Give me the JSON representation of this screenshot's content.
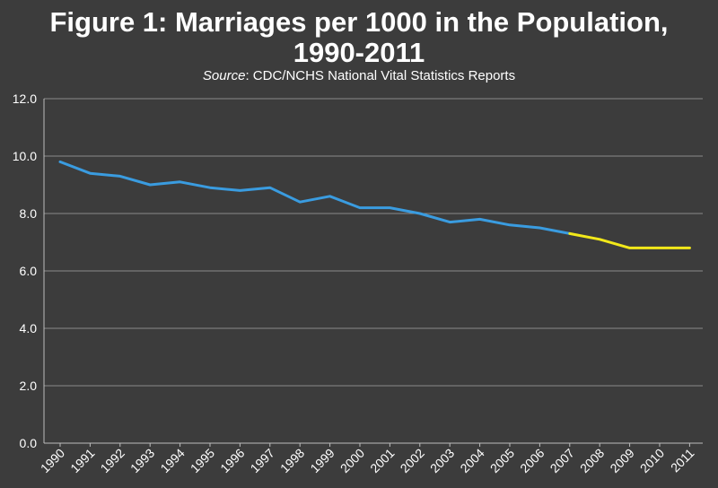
{
  "chart_data": {
    "type": "line",
    "title_line1": "Figure 1: Marriages per 1000 in the Population,",
    "title_line2": "1990-2011",
    "source_label": "Source",
    "source_text": ": CDC/NCHS National Vital Statistics Reports",
    "ylim": [
      0,
      12
    ],
    "y_ticks": [
      "0.0",
      "2.0",
      "4.0",
      "6.0",
      "8.0",
      "10.0",
      "12.0"
    ],
    "grid": true,
    "x": [
      "1990",
      "1991",
      "1992",
      "1993",
      "1994",
      "1995",
      "1996",
      "1997",
      "1998",
      "1999",
      "2000",
      "2001",
      "2002",
      "2003",
      "2004",
      "2005",
      "2006",
      "2007",
      "2008",
      "2009",
      "2010",
      "2011"
    ],
    "series": [
      {
        "color": "#3a9ce0",
        "x": [
          "1990",
          "1991",
          "1992",
          "1993",
          "1994",
          "1995",
          "1996",
          "1997",
          "1998",
          "1999",
          "2000",
          "2001",
          "2002",
          "2003",
          "2004",
          "2005",
          "2006",
          "2007"
        ],
        "values": [
          9.8,
          9.4,
          9.3,
          9.0,
          9.1,
          8.9,
          8.8,
          8.9,
          8.4,
          8.6,
          8.2,
          8.2,
          8.0,
          7.7,
          7.8,
          7.6,
          7.5,
          7.3
        ]
      },
      {
        "color": "#f2e81a",
        "x": [
          "2007",
          "2008",
          "2009",
          "2010",
          "2011"
        ],
        "values": [
          7.3,
          7.1,
          6.8,
          6.8,
          6.8
        ]
      }
    ]
  }
}
